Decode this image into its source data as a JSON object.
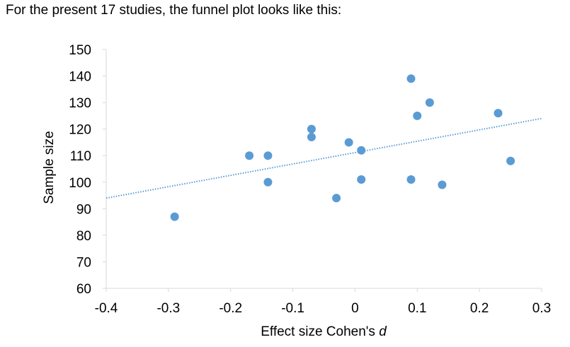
{
  "caption": "For the present 17 studies, the funnel plot looks like this:",
  "chart_data": {
    "type": "scatter",
    "xlabel_prefix": "Effect size Cohen's ",
    "xlabel_italic": "d",
    "ylabel": "Sample size",
    "xlim": [
      -0.4,
      0.3
    ],
    "ylim": [
      60,
      150
    ],
    "x_ticks": [
      -0.4,
      -0.3,
      -0.2,
      -0.1,
      0,
      0.1,
      0.2,
      0.3
    ],
    "x_tick_labels": [
      "-0.4",
      "-0.3",
      "-0.2",
      "-0.1",
      "0",
      "0.1",
      "0.2",
      "0.3"
    ],
    "y_ticks": [
      60,
      70,
      80,
      90,
      100,
      110,
      120,
      130,
      140,
      150
    ],
    "y_tick_labels": [
      "60",
      "70",
      "80",
      "90",
      "100",
      "110",
      "120",
      "130",
      "140",
      "150"
    ],
    "grid": false,
    "legend": false,
    "marker_color": "#5B9BD5",
    "trendline": {
      "style": "dotted",
      "color": "#5B9BD5",
      "x": [
        -0.4,
        0.3
      ],
      "y": [
        94,
        124
      ]
    },
    "points": [
      {
        "x": -0.29,
        "y": 87
      },
      {
        "x": -0.17,
        "y": 110
      },
      {
        "x": -0.14,
        "y": 110
      },
      {
        "x": -0.14,
        "y": 100
      },
      {
        "x": -0.07,
        "y": 120
      },
      {
        "x": -0.07,
        "y": 117
      },
      {
        "x": -0.03,
        "y": 94
      },
      {
        "x": -0.01,
        "y": 115
      },
      {
        "x": 0.01,
        "y": 112
      },
      {
        "x": 0.01,
        "y": 101
      },
      {
        "x": 0.09,
        "y": 139
      },
      {
        "x": 0.09,
        "y": 101
      },
      {
        "x": 0.1,
        "y": 125
      },
      {
        "x": 0.12,
        "y": 130
      },
      {
        "x": 0.14,
        "y": 99
      },
      {
        "x": 0.23,
        "y": 126
      },
      {
        "x": 0.25,
        "y": 108
      }
    ]
  }
}
